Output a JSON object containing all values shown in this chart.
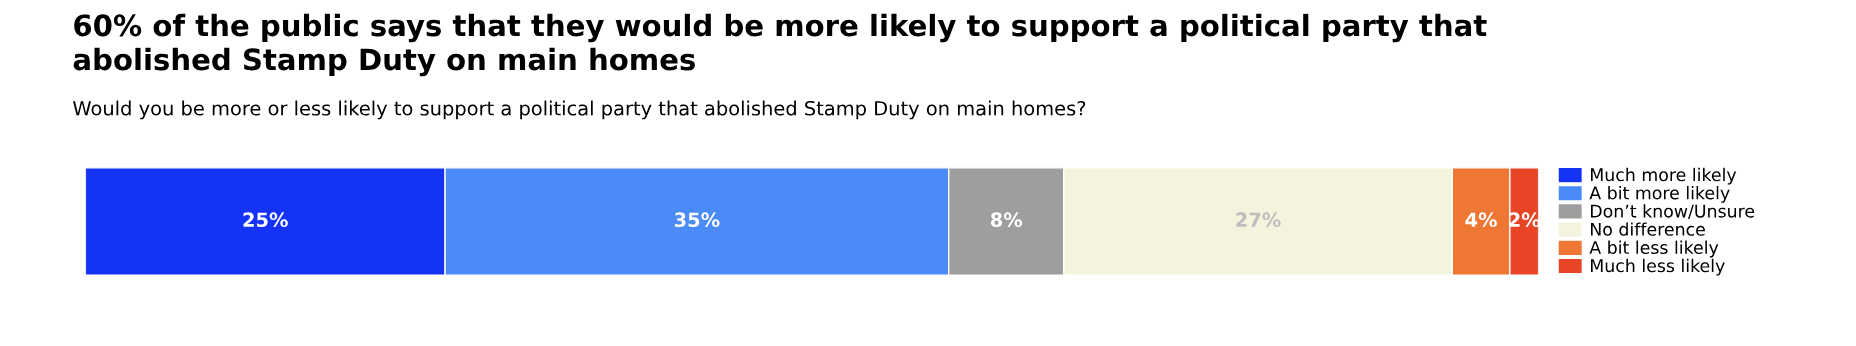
{
  "chart_data": {
    "type": "bar",
    "orientation": "horizontal",
    "stacked": true,
    "title": "60% of the public says that they would be more likely to support a political party that\nabolished Stamp Duty on main homes",
    "subtitle": "Would you be more or less likely to support a political party that abolished Stamp Duty on main homes?",
    "categories": [
      null
    ],
    "series": [
      {
        "name": "Much more likely",
        "color": "#1532f7",
        "values": [
          25
        ],
        "value_labels": [
          "25%"
        ]
      },
      {
        "name": "A bit more likely",
        "color": "#4a8bf7",
        "values": [
          35
        ],
        "value_labels": [
          "35%"
        ]
      },
      {
        "name": "Don’t know/Unsure",
        "color": "#9e9e9e",
        "values": [
          8
        ],
        "value_labels": [
          "8%"
        ]
      },
      {
        "name": "No difference",
        "color": "#f4f4de",
        "values": [
          27
        ],
        "value_labels": [
          "27%"
        ]
      },
      {
        "name": "A bit less likely",
        "color": "#ee7733",
        "values": [
          4
        ],
        "value_labels": [
          "4%"
        ]
      },
      {
        "name": "Much less likely",
        "color": "#e84426",
        "values": [
          2
        ],
        "value_labels": [
          "2%"
        ]
      }
    ],
    "legend": "right",
    "tick_labels": false
  }
}
